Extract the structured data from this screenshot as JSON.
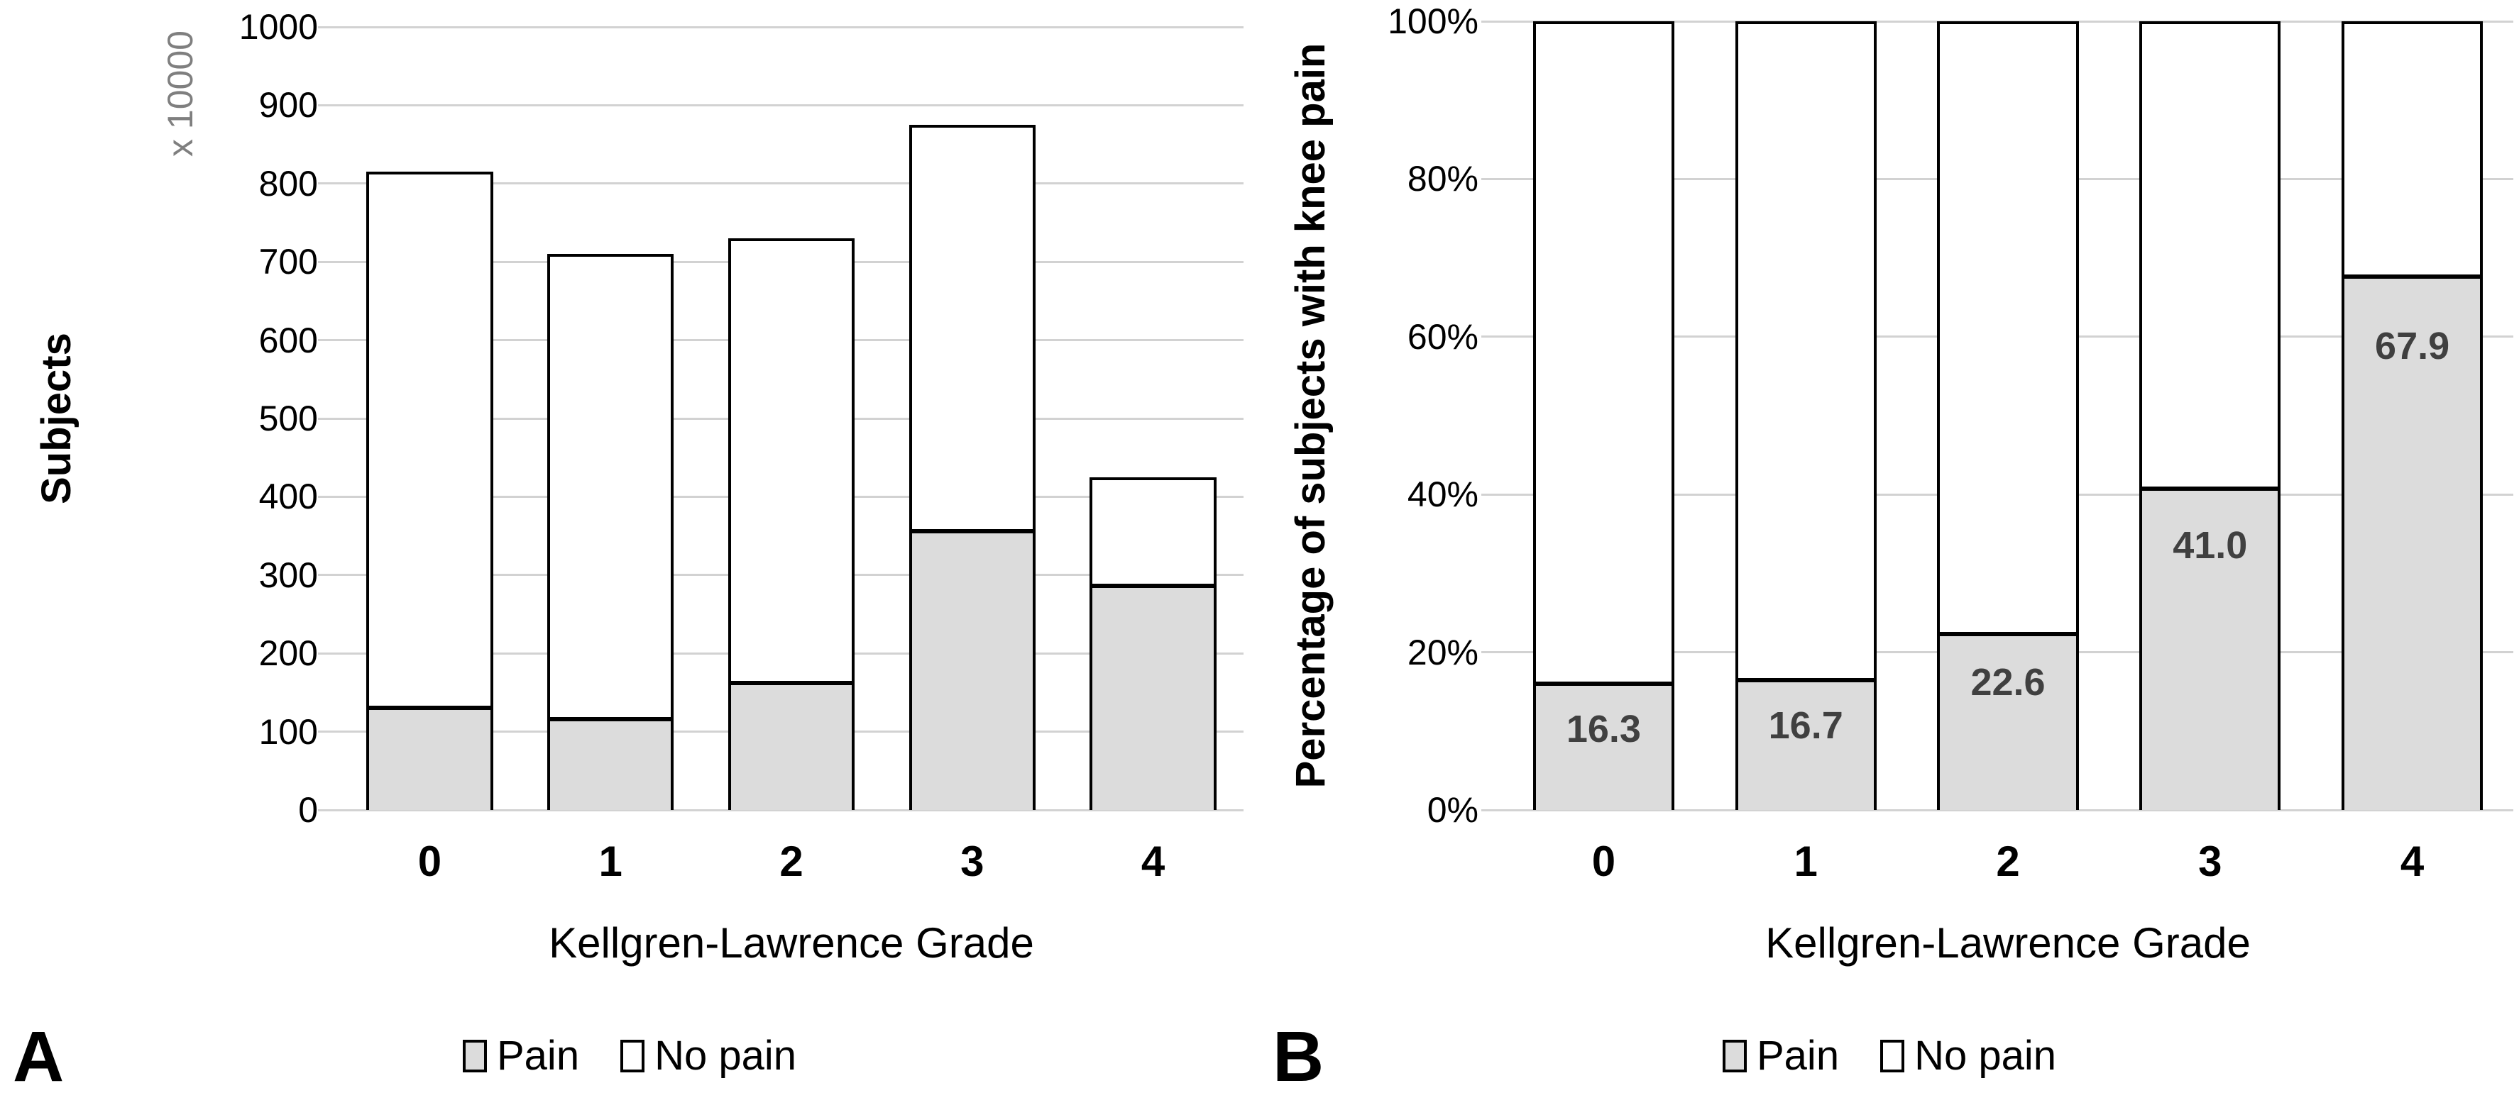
{
  "style": {
    "background": "#ffffff",
    "pain_fill": "#dcdcdc",
    "no_pain_fill": "#ffffff",
    "bar_border": "#000000",
    "gridline_color": "#d2d2d2",
    "data_label_color": "#404040",
    "multiplier_color": "#7f7f7f",
    "tick_color": "#000000"
  },
  "chart_data": [
    {
      "panel_label": "A",
      "type": "bar",
      "stacked": true,
      "title": "",
      "categories": [
        "0",
        "1",
        "2",
        "3",
        "4"
      ],
      "series": [
        {
          "name": "Pain",
          "values": [
            133,
            119,
            165,
            359,
            289
          ],
          "fill": "#dcdcdc"
        },
        {
          "name": "No pain",
          "values": [
            682,
            591,
            565,
            516,
            136
          ],
          "fill": "#ffffff"
        }
      ],
      "stack_totals": [
        815,
        710,
        730,
        875,
        425
      ],
      "xlabel": "Kellgren-Lawrence Grade",
      "ylabel": "Subjects",
      "y_multiplier": "x 10000",
      "ylim": [
        0,
        1000
      ],
      "ytick_values": [
        0,
        100,
        200,
        300,
        400,
        500,
        600,
        700,
        800,
        900,
        1000
      ],
      "ytick_labels": [
        "0",
        "100",
        "200",
        "300",
        "400",
        "500",
        "600",
        "700",
        "800",
        "900",
        "1000"
      ],
      "grid": true,
      "legend_position": "bottom",
      "data_labels": []
    },
    {
      "panel_label": "B",
      "type": "bar",
      "stacked": true,
      "title": "",
      "categories": [
        "0",
        "1",
        "2",
        "3",
        "4"
      ],
      "series": [
        {
          "name": "Pain",
          "values": [
            16.3,
            16.7,
            22.6,
            41.0,
            67.9
          ],
          "fill": "#dcdcdc"
        },
        {
          "name": "No pain",
          "values": [
            83.7,
            83.3,
            77.4,
            59.0,
            32.1
          ],
          "fill": "#ffffff"
        }
      ],
      "stack_totals": [
        100,
        100,
        100,
        100,
        100
      ],
      "xlabel": "Kellgren-Lawrence Grade",
      "ylabel": "Percentage of subjects with knee pain",
      "ylim": [
        0,
        100
      ],
      "ytick_values": [
        0,
        20,
        40,
        60,
        80,
        100
      ],
      "ytick_labels": [
        "0%",
        "20%",
        "40%",
        "60%",
        "80%",
        "100%"
      ],
      "grid": true,
      "legend_position": "bottom",
      "data_labels": [
        "16.3",
        "16.7",
        "22.6",
        "41.0",
        "67.9"
      ]
    }
  ]
}
